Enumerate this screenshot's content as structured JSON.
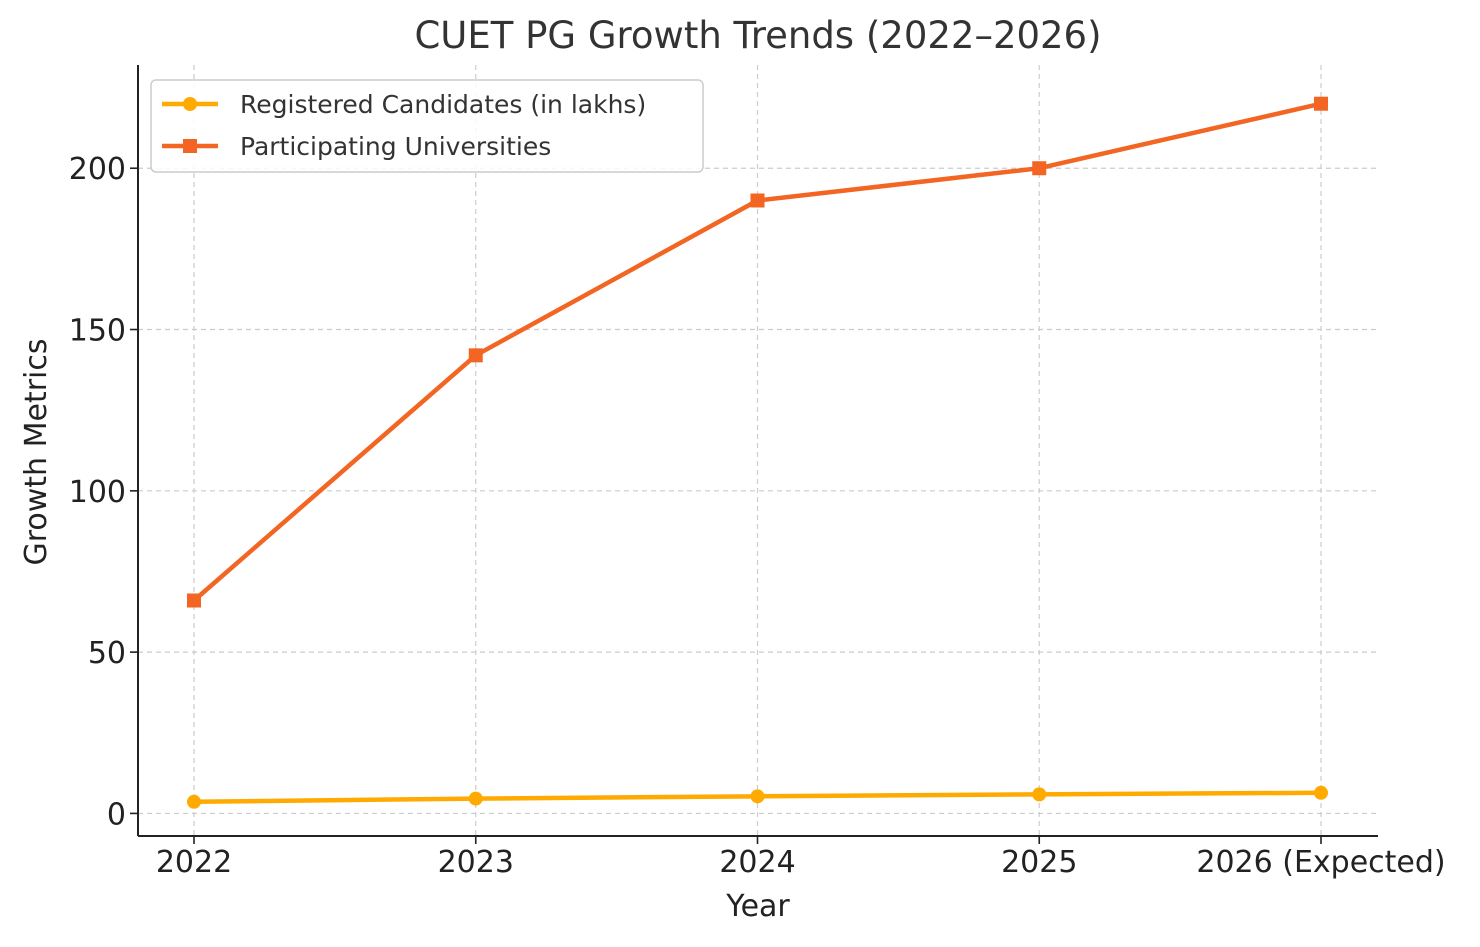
{
  "chart_data": {
    "type": "line",
    "title": "CUET PG Growth Trends (2022–2026)",
    "xlabel": "Year",
    "ylabel": "Growth Metrics",
    "categories": [
      "2022",
      "2023",
      "2024",
      "2025",
      "2026 (Expected)"
    ],
    "ylim": [
      -7,
      232
    ],
    "yticks": [
      0,
      50,
      100,
      150,
      200
    ],
    "grid": true,
    "legend_position": "top-left",
    "series": [
      {
        "name": "Registered Candidates (in lakhs)",
        "values": [
          3.6,
          4.6,
          5.3,
          5.9,
          6.4
        ],
        "color": "#FFAA00",
        "marker": "circle"
      },
      {
        "name": "Participating Universities",
        "values": [
          66,
          142,
          190,
          200,
          220
        ],
        "color": "#F26522",
        "marker": "square"
      }
    ]
  }
}
